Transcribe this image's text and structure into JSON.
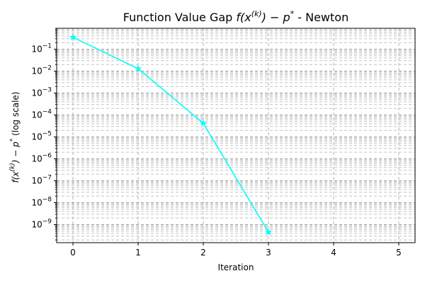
{
  "chart_data": {
    "type": "line",
    "title": "Function Value Gap f(x^(k)) − p* - Newton",
    "title_parts": {
      "main": "Function Value Gap ",
      "math": "f(x",
      "sup": "(k)",
      "tail": ") − p",
      "star": "*",
      "suffix": "  - Newton"
    },
    "xlabel": "Iteration",
    "ylabel_parts": {
      "math": "f(x",
      "sup": "(k)",
      "tail": ") − p",
      "star": "*",
      "suffix": "  (log scale)"
    },
    "yscale": "log",
    "xlim": [
      -0.25,
      5.25
    ],
    "ylim": [
      1.5e-10,
      0.9
    ],
    "x_ticks": [
      0,
      1,
      2,
      3,
      4,
      5
    ],
    "y_tick_exponents": [
      -9,
      -8,
      -7,
      -6,
      -5,
      -4,
      -3,
      -2,
      -1
    ],
    "grid": true,
    "series": [
      {
        "x": [
          0,
          1,
          2,
          3
        ],
        "y": [
          0.35,
          0.013,
          4.2e-05,
          4.5e-10
        ],
        "color": "#00ffff",
        "marker": "star"
      }
    ]
  }
}
